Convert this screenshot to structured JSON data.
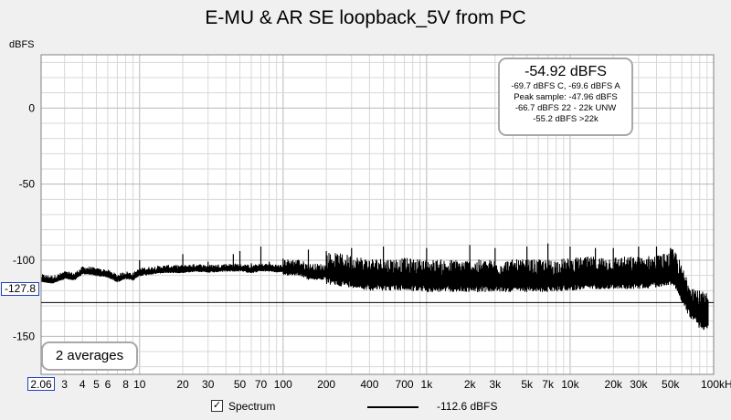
{
  "chart_data": {
    "type": "line",
    "title": "E-MU & AR SE loopback_5V from PC",
    "ylabel": "dBFS",
    "xlabel": "",
    "x_scale": "log",
    "xlim": [
      2.06,
      100000
    ],
    "ylim": [
      -175,
      35
    ],
    "grid": true,
    "x_tick_labels": [
      "3",
      "4",
      "5",
      "6",
      "8",
      "10",
      "20",
      "30",
      "50",
      "70",
      "100",
      "200",
      "400",
      "700",
      "1k",
      "2k",
      "3k",
      "5k",
      "7k",
      "10k",
      "20k",
      "30k",
      "50k",
      "100kHz"
    ],
    "x_tick_values": [
      3,
      4,
      5,
      6,
      8,
      10,
      20,
      30,
      50,
      70,
      100,
      200,
      400,
      700,
      1000,
      2000,
      3000,
      5000,
      7000,
      10000,
      20000,
      30000,
      50000,
      100000
    ],
    "y_ticks": [
      0,
      -50,
      -100,
      -150
    ],
    "x_min_label": "2.06",
    "cursor_label": "-127.8",
    "cursor_value": -127.8,
    "series": [
      {
        "name": "Spectrum",
        "legend_value": "-112.6 dBFS",
        "color": "#000000",
        "x": [
          2.06,
          2.5,
          3,
          3.5,
          4,
          4.5,
          5,
          6,
          7,
          8,
          9,
          10,
          12,
          15,
          20,
          25,
          30,
          40,
          50,
          60,
          70,
          80,
          100,
          130,
          150,
          200,
          300,
          400,
          500,
          700,
          1000,
          1500,
          2000,
          3000,
          5000,
          7000,
          10000,
          15000,
          20000,
          30000,
          40000,
          50000,
          55000,
          60000,
          70000,
          80000,
          90000,
          100000
        ],
        "y": [
          -113,
          -114,
          -111,
          -112,
          -108,
          -108,
          -109,
          -110,
          -113,
          -111,
          -112,
          -109,
          -108,
          -107,
          -107,
          -106,
          -107,
          -106,
          -106,
          -107,
          -106,
          -106,
          -107,
          -107,
          -110,
          -110,
          -112,
          -114,
          -114,
          -114,
          -115,
          -115,
          -115,
          -115,
          -115,
          -115,
          -114,
          -113,
          -113,
          -113,
          -112,
          -110,
          -112,
          -122,
          -132,
          -138,
          -140,
          -140
        ],
        "spur_x": [
          10,
          20,
          25,
          30,
          45,
          50,
          60,
          70,
          80,
          100,
          150,
          200,
          300,
          500,
          1000,
          2000,
          3000,
          5000,
          7000,
          10000,
          15000,
          20000,
          30000,
          40000,
          50000
        ],
        "spur_y": [
          -100,
          -96,
          -104,
          -101,
          -96,
          -94,
          -102,
          -91,
          -101,
          -99,
          -93,
          -94,
          -92,
          -91,
          -92,
          -90,
          -92,
          -91,
          -89,
          -91,
          -92,
          -92,
          -91,
          -91,
          -92
        ]
      }
    ]
  },
  "info": {
    "main": "-54.92 dBFS",
    "lines": [
      "-69.7 dBFS C, -69.6 dBFS A",
      "Peak sample: -47.96 dBFS",
      "-66.7 dBFS 22 - 22k UNW",
      "-55.2 dBFS >22k"
    ]
  },
  "averages_label": "2 averages",
  "legend": {
    "checkbox_checked": true,
    "check_mark": "✓",
    "series_label": "Spectrum",
    "value": "-112.6 dBFS"
  },
  "colors": {
    "plot_bg": "#ffffff",
    "grid_minor": "#d8d8d8",
    "grid_major": "#b8b8b8",
    "trace": "#000000",
    "box_border": "#a8a8a8",
    "marker_border": "#2040c0"
  }
}
